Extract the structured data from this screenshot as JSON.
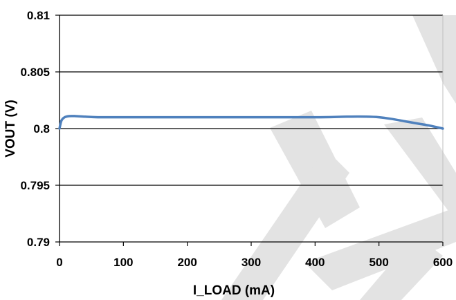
{
  "chart_data": {
    "type": "line",
    "title": "",
    "xlabel": "I_LOAD  (mA)",
    "ylabel": "VOUT (V)",
    "xlim": [
      0,
      600
    ],
    "ylim": [
      0.79,
      0.81
    ],
    "x_ticks": [
      0,
      100,
      200,
      300,
      400,
      500,
      600
    ],
    "y_ticks": [
      0.79,
      0.795,
      0.8,
      0.805,
      0.81
    ],
    "x_tick_labels": [
      "0",
      "100",
      "200",
      "300",
      "400",
      "500",
      "600"
    ],
    "y_tick_labels": [
      "0.79",
      "0.795",
      "0.8",
      "0.805",
      "0.81"
    ],
    "grid": "horizontal",
    "series": [
      {
        "color": "#4f81bd",
        "x": [
          0,
          3,
          8,
          15,
          25,
          40,
          60,
          100,
          200,
          300,
          400,
          450,
          480,
          500,
          520,
          540,
          560,
          580,
          600
        ],
        "y": [
          0.8,
          0.8007,
          0.801,
          0.8011,
          0.8011,
          0.80105,
          0.801,
          0.801,
          0.801,
          0.801,
          0.801,
          0.80105,
          0.80105,
          0.801,
          0.80085,
          0.80065,
          0.80045,
          0.80025,
          0.8
        ]
      }
    ]
  },
  "watermark": {
    "color": "#e3e3e3"
  }
}
